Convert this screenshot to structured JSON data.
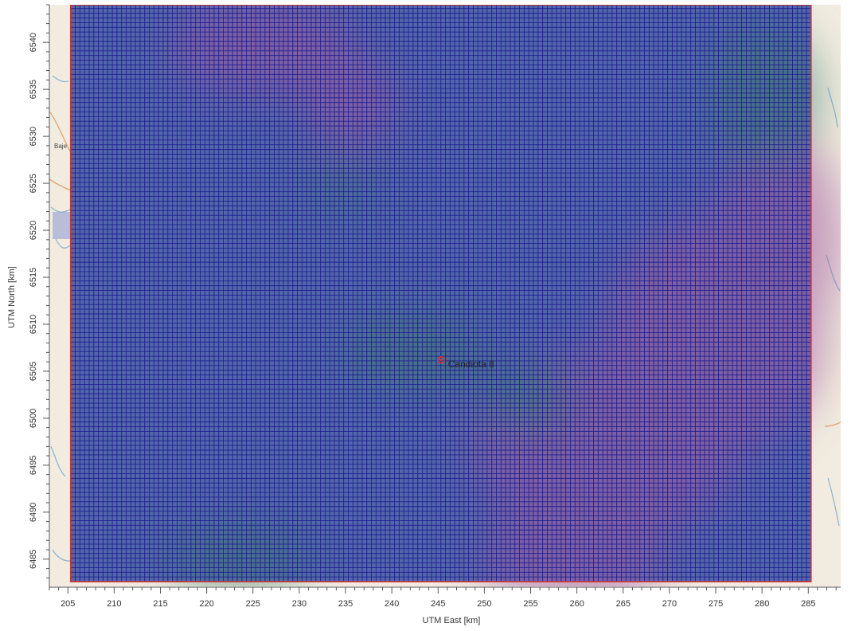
{
  "map": {
    "site_label": "Candiota II",
    "side_label": "Baje",
    "x_axis": {
      "title": "UTM East [km]",
      "ticks": [
        205,
        210,
        215,
        220,
        225,
        230,
        235,
        240,
        245,
        250,
        255,
        260,
        265,
        270,
        275,
        280,
        285
      ],
      "range": [
        203.0,
        288.5
      ],
      "minor_step": 1
    },
    "y_axis": {
      "title": "UTM North [km]",
      "ticks": [
        6485,
        6490,
        6495,
        6500,
        6505,
        6510,
        6515,
        6520,
        6525,
        6530,
        6535,
        6540
      ],
      "range": [
        6482.1,
        6544.0
      ],
      "minor_step": 1
    },
    "grid": {
      "x_extent": [
        205.3,
        285.3
      ],
      "y_extent": [
        6482.6,
        6544.0
      ],
      "spacing_km": 0.5,
      "line_color": "#1a1a8c",
      "border_color": "#cc3333"
    },
    "site": {
      "x": 245.3,
      "y": 6506.2,
      "color": "#e03030"
    },
    "colors": {
      "base_map": "#f1ecdf",
      "overlay_blue": "#4a5fa8",
      "overlay_magenta": "#a05aa0",
      "overlay_green": "#3c7a70"
    }
  }
}
